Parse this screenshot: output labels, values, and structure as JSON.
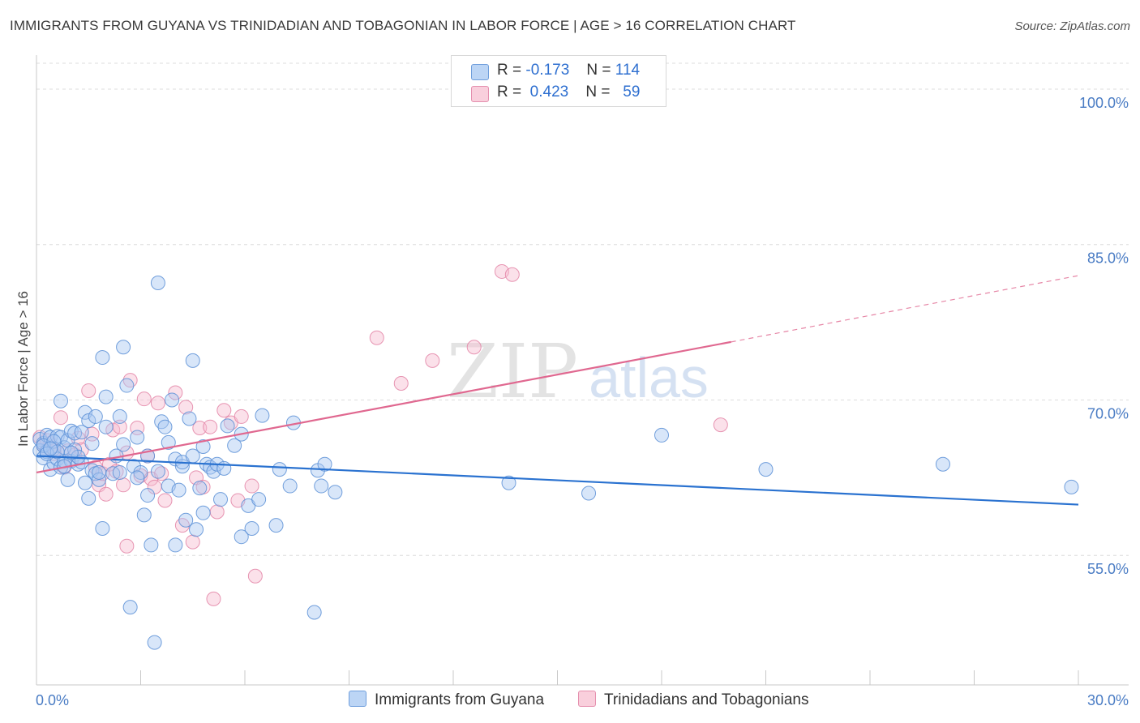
{
  "title": "IMMIGRANTS FROM GUYANA VS TRINIDADIAN AND TOBAGONIAN IN LABOR FORCE | AGE > 16 CORRELATION CHART",
  "source": "Source: ZipAtlas.com",
  "watermark": "ZIPatlas",
  "legend": {
    "r_label": "R =",
    "n_label": "N =",
    "series1": {
      "r": "-0.173",
      "n": "114"
    },
    "series2": {
      "r": "0.423",
      "n": "59"
    }
  },
  "colors": {
    "series1_fill": "#a9c8f2",
    "series1_stroke": "#5a8fd6",
    "series1_line": "#2a72d0",
    "series2_fill": "#f7bdd0",
    "series2_stroke": "#e384a6",
    "series2_line": "#e06890",
    "tick_text": "#4a7cc4"
  },
  "chart_data": {
    "type": "scatter",
    "title": "IMMIGRANTS FROM GUYANA VS TRINIDADIAN AND TOBAGONIAN IN LABOR FORCE | AGE > 16 CORRELATION CHART",
    "xlabel": "",
    "ylabel": "In Labor Force | Age > 16",
    "xlim": [
      0,
      30
    ],
    "ylim": [
      42.5,
      102.5
    ],
    "x_tick_labels": [
      "0.0%",
      "30.0%"
    ],
    "y_ticks": [
      55,
      70,
      85,
      100
    ],
    "y_tick_labels": [
      "55.0%",
      "70.0%",
      "85.0%",
      "100.0%"
    ],
    "grid": "horizontal dashed",
    "legend_position": "top-center",
    "series": [
      {
        "name": "Immigrants from Guyana",
        "r": -0.173,
        "n": 114,
        "trend": {
          "x": [
            0,
            30
          ],
          "y": [
            64.6,
            59.9
          ]
        },
        "points": [
          [
            0.1,
            66.2
          ],
          [
            0.1,
            65.1
          ],
          [
            0.2,
            64.4
          ],
          [
            0.2,
            65.8
          ],
          [
            0.3,
            66.6
          ],
          [
            0.3,
            65.0
          ],
          [
            0.4,
            63.3
          ],
          [
            0.4,
            66.4
          ],
          [
            0.5,
            65.3
          ],
          [
            0.5,
            63.9
          ],
          [
            0.6,
            64.3
          ],
          [
            0.6,
            66.5
          ],
          [
            0.7,
            63.5
          ],
          [
            0.7,
            69.9
          ],
          [
            0.7,
            66.4
          ],
          [
            0.8,
            64.1
          ],
          [
            0.8,
            65.4
          ],
          [
            0.9,
            66.1
          ],
          [
            0.9,
            62.3
          ],
          [
            1.0,
            67.0
          ],
          [
            1.0,
            64.1
          ],
          [
            1.1,
            65.2
          ],
          [
            1.1,
            66.8
          ],
          [
            1.2,
            63.8
          ],
          [
            1.3,
            64.0
          ],
          [
            1.3,
            66.9
          ],
          [
            1.4,
            68.8
          ],
          [
            1.4,
            62.0
          ],
          [
            1.5,
            60.5
          ],
          [
            1.5,
            68.0
          ],
          [
            1.6,
            63.2
          ],
          [
            1.6,
            65.8
          ],
          [
            1.7,
            62.9
          ],
          [
            1.7,
            68.4
          ],
          [
            1.8,
            62.3
          ],
          [
            1.9,
            57.6
          ],
          [
            1.9,
            74.1
          ],
          [
            2.0,
            70.3
          ],
          [
            2.0,
            67.4
          ],
          [
            2.2,
            62.9
          ],
          [
            2.3,
            64.6
          ],
          [
            2.4,
            68.4
          ],
          [
            2.4,
            63.0
          ],
          [
            2.5,
            75.1
          ],
          [
            2.5,
            65.7
          ],
          [
            2.6,
            71.4
          ],
          [
            2.7,
            50.0
          ],
          [
            2.8,
            63.6
          ],
          [
            2.9,
            66.4
          ],
          [
            3.0,
            63.0
          ],
          [
            3.1,
            58.9
          ],
          [
            3.2,
            64.6
          ],
          [
            3.2,
            60.8
          ],
          [
            3.3,
            56.0
          ],
          [
            3.4,
            46.6
          ],
          [
            3.5,
            81.3
          ],
          [
            3.5,
            63.1
          ],
          [
            3.6,
            67.9
          ],
          [
            3.7,
            67.4
          ],
          [
            3.8,
            61.7
          ],
          [
            3.9,
            70.0
          ],
          [
            4.0,
            56.0
          ],
          [
            4.0,
            64.3
          ],
          [
            4.1,
            61.3
          ],
          [
            4.2,
            63.6
          ],
          [
            4.2,
            64.0
          ],
          [
            4.3,
            58.4
          ],
          [
            4.4,
            68.2
          ],
          [
            4.5,
            73.8
          ],
          [
            4.5,
            64.6
          ],
          [
            4.6,
            57.5
          ],
          [
            4.7,
            61.5
          ],
          [
            4.8,
            59.1
          ],
          [
            4.8,
            65.5
          ],
          [
            4.9,
            63.8
          ],
          [
            5.0,
            63.5
          ],
          [
            5.1,
            63.1
          ],
          [
            5.2,
            63.8
          ],
          [
            5.3,
            60.4
          ],
          [
            5.4,
            63.4
          ],
          [
            5.5,
            67.5
          ],
          [
            5.7,
            65.6
          ],
          [
            5.9,
            66.7
          ],
          [
            5.9,
            56.8
          ],
          [
            6.1,
            59.8
          ],
          [
            6.2,
            57.6
          ],
          [
            6.4,
            60.4
          ],
          [
            6.5,
            68.5
          ],
          [
            6.9,
            57.9
          ],
          [
            7.0,
            63.3
          ],
          [
            7.3,
            61.7
          ],
          [
            7.4,
            67.8
          ],
          [
            8.0,
            49.5
          ],
          [
            8.1,
            63.2
          ],
          [
            8.2,
            61.7
          ],
          [
            8.3,
            63.8
          ],
          [
            8.6,
            61.1
          ],
          [
            13.6,
            62.0
          ],
          [
            15.9,
            61.0
          ],
          [
            18.0,
            66.6
          ],
          [
            21.0,
            63.3
          ],
          [
            26.1,
            63.8
          ],
          [
            29.8,
            61.6
          ],
          [
            0.2,
            65.6
          ],
          [
            0.5,
            66.0
          ],
          [
            1.2,
            64.5
          ],
          [
            1.8,
            63.0
          ],
          [
            2.9,
            62.5
          ],
          [
            3.8,
            65.9
          ],
          [
            0.3,
            64.8
          ],
          [
            0.6,
            65.0
          ],
          [
            0.8,
            63.6
          ],
          [
            1.0,
            64.9
          ],
          [
            0.4,
            65.3
          ]
        ]
      },
      {
        "name": "Trinidadians and Tobagonians",
        "r": 0.423,
        "n": 59,
        "trend": {
          "x": [
            0,
            20
          ],
          "y": [
            63.0,
            75.6
          ]
        },
        "trend_dashed_extension": {
          "x": [
            20,
            30
          ],
          "y": [
            75.6,
            82.0
          ]
        },
        "points": [
          [
            0.1,
            66.4
          ],
          [
            0.2,
            65.6
          ],
          [
            0.3,
            65.3
          ],
          [
            0.3,
            66.1
          ],
          [
            0.4,
            65.8
          ],
          [
            0.5,
            65.1
          ],
          [
            0.5,
            64.8
          ],
          [
            0.7,
            68.3
          ],
          [
            0.8,
            63.5
          ],
          [
            0.9,
            65.1
          ],
          [
            1.1,
            64.7
          ],
          [
            1.2,
            66.3
          ],
          [
            1.3,
            65.2
          ],
          [
            1.5,
            70.9
          ],
          [
            1.6,
            66.7
          ],
          [
            1.7,
            63.5
          ],
          [
            1.8,
            61.8
          ],
          [
            1.9,
            62.9
          ],
          [
            2.0,
            60.9
          ],
          [
            2.1,
            63.8
          ],
          [
            2.2,
            67.1
          ],
          [
            2.3,
            63.1
          ],
          [
            2.4,
            67.4
          ],
          [
            2.5,
            61.8
          ],
          [
            2.6,
            55.9
          ],
          [
            2.6,
            64.9
          ],
          [
            2.7,
            71.9
          ],
          [
            2.9,
            67.3
          ],
          [
            3.0,
            62.7
          ],
          [
            3.1,
            70.1
          ],
          [
            3.2,
            64.6
          ],
          [
            3.3,
            62.4
          ],
          [
            3.4,
            61.6
          ],
          [
            3.5,
            69.7
          ],
          [
            3.6,
            62.9
          ],
          [
            3.7,
            60.3
          ],
          [
            4.0,
            70.7
          ],
          [
            4.2,
            57.9
          ],
          [
            4.3,
            69.3
          ],
          [
            4.5,
            56.3
          ],
          [
            4.6,
            62.5
          ],
          [
            4.7,
            67.3
          ],
          [
            4.8,
            61.6
          ],
          [
            5.0,
            67.4
          ],
          [
            5.1,
            50.8
          ],
          [
            5.2,
            59.2
          ],
          [
            5.4,
            69.0
          ],
          [
            5.6,
            67.8
          ],
          [
            5.8,
            60.3
          ],
          [
            5.9,
            68.4
          ],
          [
            6.2,
            61.7
          ],
          [
            6.3,
            53.0
          ],
          [
            9.8,
            76.0
          ],
          [
            10.5,
            71.6
          ],
          [
            11.4,
            73.8
          ],
          [
            12.6,
            75.1
          ],
          [
            13.4,
            82.4
          ],
          [
            13.7,
            82.1
          ],
          [
            19.7,
            67.6
          ]
        ]
      }
    ]
  },
  "bottom_legend": {
    "series1": "Immigrants from Guyana",
    "series2": "Trinidadians and Tobagonians"
  }
}
